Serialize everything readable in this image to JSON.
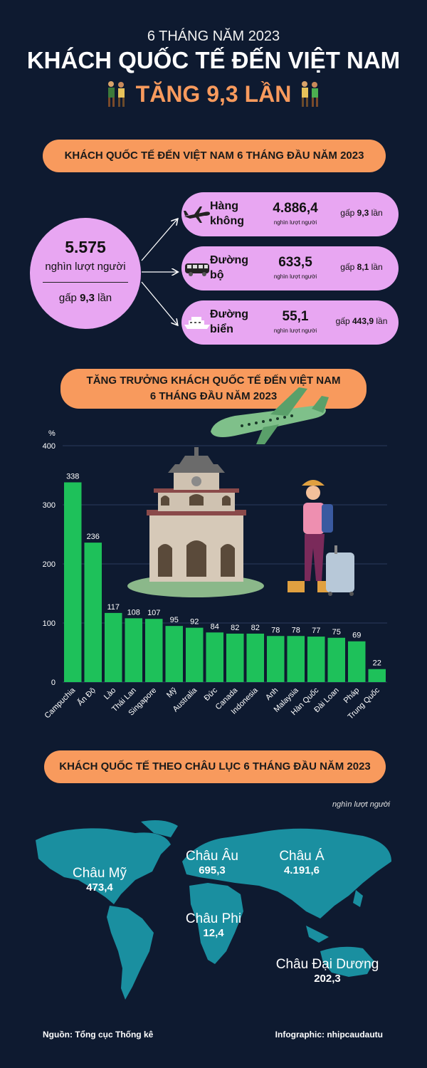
{
  "header": {
    "supertitle": "6 THÁNG NĂM 2023",
    "title": "KHÁCH QUỐC TẾ ĐẾN VIỆT NAM",
    "subtitle": "TĂNG 9,3 LẦN"
  },
  "section1": {
    "heading": "KHÁCH QUỐC TẾ ĐẾN VIỆT NAM 6 THÁNG ĐẦU NĂM 2023",
    "total_value": "5.575",
    "total_unit": "nghìn lượt người",
    "total_mult_prefix": "gấp ",
    "total_mult_value": "9,3",
    "total_mult_suffix": " lần",
    "modes": [
      {
        "name": "Hàng không",
        "value": "4.886,4",
        "unit": "nghìn lượt người",
        "mult_prefix": "gấp ",
        "mult_value": "9,3",
        "mult_suffix": " lần",
        "icon": "airplane-icon"
      },
      {
        "name": "Đường bộ",
        "value": "633,5",
        "unit": "nghìn lượt người",
        "mult_prefix": "gấp ",
        "mult_value": "8,1",
        "mult_suffix": " lần",
        "icon": "van-icon"
      },
      {
        "name": "Đường biển",
        "value": "55,1",
        "unit": "nghìn lượt người",
        "mult_prefix": "gấp ",
        "mult_value": "443,9",
        "mult_suffix": " lần",
        "icon": "ship-icon"
      }
    ]
  },
  "section2": {
    "heading_line1": "TĂNG TRƯỞNG KHÁCH QUỐC TẾ ĐẾN VIỆT NAM",
    "heading_line2": "6 THÁNG ĐẦU NĂM 2023"
  },
  "chart_data": {
    "type": "bar",
    "ylabel": "%",
    "ylim": [
      0,
      400
    ],
    "yticks": [
      0,
      100,
      200,
      300,
      400
    ],
    "grid": true,
    "bar_color": "#1ec15a",
    "categories": [
      "Campuchia",
      "Ấn Độ",
      "Lào",
      "Thái Lan",
      "Singapore",
      "Mỹ",
      "Australia",
      "Đức",
      "Canada",
      "Indonesia",
      "Anh",
      "Malaysia",
      "Hàn Quốc",
      "Đài Loan",
      "Pháp",
      "Trung Quốc"
    ],
    "values": [
      338,
      236,
      117,
      108,
      107,
      95,
      92,
      84,
      82,
      82,
      78,
      78,
      77,
      75,
      69,
      22
    ]
  },
  "section3": {
    "heading": "KHÁCH QUỐC TẾ THEO CHÂU LỤC 6 THÁNG ĐẦU NĂM 2023",
    "unit": "nghìn lượt người",
    "continents": [
      {
        "name": "Châu Mỹ",
        "value": "473,4"
      },
      {
        "name": "Châu Âu",
        "value": "695,3"
      },
      {
        "name": "Châu Á",
        "value": "4.191,6"
      },
      {
        "name": "Châu Phi",
        "value": "12,4"
      },
      {
        "name": "Châu Đại Dương",
        "value": "202,3"
      }
    ]
  },
  "footer": {
    "source": "Nguồn: Tổng cục Thống kê",
    "credit": "Infographic: nhipcaudautu"
  },
  "colors": {
    "background": "#0e1a30",
    "accent": "#f89a5d",
    "card": "#e8a6f2",
    "map": "#1a8fa0"
  }
}
